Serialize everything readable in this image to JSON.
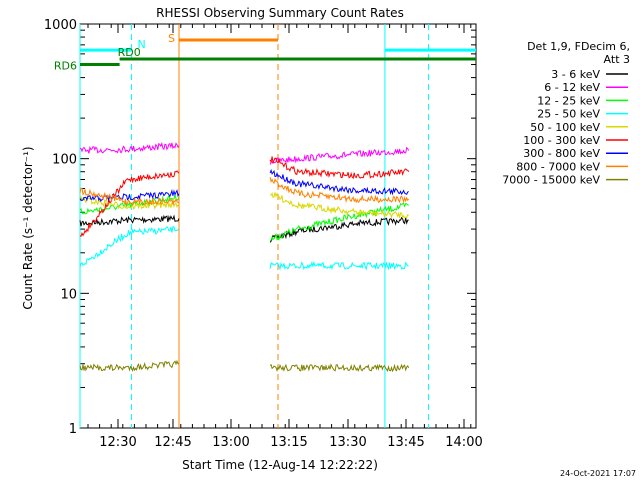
{
  "chart_data": {
    "type": "line",
    "title": "RHESSI Observing Summary Count Rates",
    "xlabel": "Start Time (12-Aug-14 12:22:22)",
    "ylabel": "Count Rate (s⁻¹ detector⁻¹)",
    "yscale": "log",
    "ylim": [
      1,
      1000
    ],
    "xlim": [
      "12:22:22",
      "14:02:00"
    ],
    "x_ticks": [
      "12:30",
      "12:45",
      "13:00",
      "13:15",
      "13:30",
      "13:45",
      "14:00"
    ],
    "y_ticks": [
      "1",
      "10",
      "100",
      "1000"
    ],
    "footer": "24-Oct-2021 17:07",
    "legend_header": [
      "Det 1,9, FDecim 6,",
      "Att 3"
    ],
    "series": [
      {
        "name": "3 - 6 keV",
        "color": "#000000",
        "pre": [
          [
            0,
            33
          ],
          [
            12,
            35
          ],
          [
            25,
            36
          ]
        ],
        "post": [
          [
            48,
            25
          ],
          [
            55,
            29
          ],
          [
            70,
            33
          ],
          [
            83,
            35
          ]
        ]
      },
      {
        "name": "6 - 12 keV",
        "color": "#ff00ff",
        "pre": [
          [
            0,
            115
          ],
          [
            12,
            118
          ],
          [
            25,
            125
          ]
        ],
        "post": [
          [
            48,
            95
          ],
          [
            55,
            100
          ],
          [
            70,
            108
          ],
          [
            83,
            115
          ]
        ]
      },
      {
        "name": "12 - 25 keV",
        "color": "#00ff00",
        "pre": [
          [
            0,
            40
          ],
          [
            12,
            45
          ],
          [
            25,
            52
          ]
        ],
        "post": [
          [
            48,
            25
          ],
          [
            55,
            30
          ],
          [
            70,
            38
          ],
          [
            83,
            45
          ]
        ]
      },
      {
        "name": "25 - 50 keV",
        "color": "#00ffff",
        "pre": [
          [
            0,
            16
          ],
          [
            12,
            28
          ],
          [
            25,
            30
          ]
        ],
        "post": [
          [
            48,
            16
          ],
          [
            55,
            16
          ],
          [
            70,
            16
          ],
          [
            83,
            16
          ]
        ]
      },
      {
        "name": "50 - 100 keV",
        "color": "#d8d800",
        "pre": [
          [
            0,
            50
          ],
          [
            12,
            44
          ],
          [
            25,
            46
          ]
        ],
        "post": [
          [
            48,
            55
          ],
          [
            55,
            45
          ],
          [
            70,
            40
          ],
          [
            83,
            38
          ]
        ]
      },
      {
        "name": "100 - 300 keV",
        "color": "#ff0000",
        "pre": [
          [
            0,
            26
          ],
          [
            12,
            70
          ],
          [
            25,
            78
          ]
        ],
        "post": [
          [
            48,
            100
          ],
          [
            55,
            80
          ],
          [
            70,
            75
          ],
          [
            83,
            80
          ]
        ]
      },
      {
        "name": "300 - 800 keV",
        "color": "#0000ff",
        "pre": [
          [
            0,
            50
          ],
          [
            12,
            52
          ],
          [
            25,
            55
          ]
        ],
        "post": [
          [
            48,
            80
          ],
          [
            55,
            65
          ],
          [
            70,
            58
          ],
          [
            83,
            57
          ]
        ]
      },
      {
        "name": "800 - 7000 keV",
        "color": "#ff8000",
        "pre": [
          [
            0,
            58
          ],
          [
            12,
            48
          ],
          [
            25,
            48
          ]
        ],
        "post": [
          [
            48,
            70
          ],
          [
            55,
            55
          ],
          [
            70,
            50
          ],
          [
            83,
            50
          ]
        ]
      },
      {
        "name": "7000 - 15000 keV",
        "color": "#808000",
        "pre": [
          [
            0,
            2.8
          ],
          [
            12,
            2.8
          ],
          [
            25,
            3
          ]
        ],
        "post": [
          [
            48,
            2.8
          ],
          [
            55,
            2.8
          ],
          [
            70,
            2.8
          ],
          [
            83,
            2.8
          ]
        ]
      }
    ],
    "bars": [
      {
        "label": "N",
        "color": "#00ffff",
        "segments": [
          [
            0,
            13
          ],
          [
            77,
            100
          ]
        ],
        "level": 640
      },
      {
        "label": "S",
        "color": "#ff8000",
        "segments": [
          [
            25,
            50
          ]
        ],
        "level": 760
      },
      {
        "label": "RD0",
        "color": "#008000",
        "segments": [
          [
            10,
            100
          ]
        ],
        "level": 550
      },
      {
        "label": "RD6",
        "color": "#008000",
        "segments": [
          [
            0,
            10
          ]
        ],
        "level": 500
      }
    ],
    "vlines": [
      {
        "x": 0,
        "color": "#00ffff",
        "style": "solid"
      },
      {
        "x": 13,
        "color": "#00ffff",
        "style": "dashed"
      },
      {
        "x": 25,
        "color": "#ff8000",
        "style": "solid"
      },
      {
        "x": 50,
        "color": "#ff8000",
        "style": "dashed"
      },
      {
        "x": 77,
        "color": "#00ffff",
        "style": "solid"
      },
      {
        "x": 88,
        "color": "#00ffff",
        "style": "dashed"
      }
    ]
  }
}
